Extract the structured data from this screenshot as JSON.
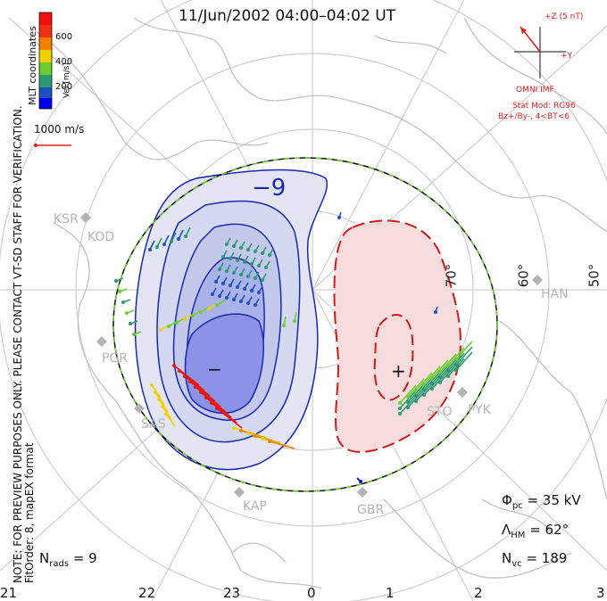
{
  "title": "11/Jun/2002 04:00–04:02 UT",
  "side_note_line1": "NOTE: FOR PREVIEW PURPOSES ONLY. PLEASE CONTACT VT-SD STAFF FOR VERIFICATION.",
  "side_note_line2": "FitOrder: 8, mapEX format",
  "coord_label": "MLT coordinates",
  "colorbar": {
    "label": "Vel [m/s]",
    "ticks": [
      "600",
      "400",
      "200"
    ],
    "colors": [
      "#0000ee",
      "#2050c0",
      "#2a9a70",
      "#6ccc30",
      "#f0d000",
      "#f08000",
      "#e02010",
      "#f01010"
    ]
  },
  "ref_vector": "1000 m/s",
  "imf": {
    "z_label": "+Z (5 nT)",
    "y_label": "+Y",
    "title": "OMNI IMF",
    "model_line1": "Stat Mod: RG96",
    "model_line2": "Bz+/By-, 4<BT<6"
  },
  "cell_minimum_label": "−9",
  "neg_marker": "−",
  "pos_marker": "+",
  "latitude_labels": [
    "70°",
    "60°",
    "50°"
  ],
  "stations": [
    "KSR",
    "KOD",
    "PGR",
    "SAS",
    "KAP",
    "GBR",
    "STO",
    "PYK",
    "HAN"
  ],
  "stats": {
    "phi_label": "Φ",
    "phi_sub": "pc",
    "phi_value": "= 35 kV",
    "lambda_label": "Λ",
    "lambda_sub": "HM",
    "lambda_value": "= 62°",
    "nvc_label": "N",
    "nvc_sub": "vc",
    "nvc_value": "= 189",
    "nrads_label": "N",
    "nrads_sub": "rads",
    "nrads_value": "= 9"
  },
  "hour_labels": [
    "21",
    "22",
    "23",
    "0",
    "1",
    "2",
    "3"
  ],
  "colors": {
    "neg_cell_outer": "#e3e5f2",
    "neg_cell_mid": "#c4c9ec",
    "neg_cell_inner": "#8a93e6",
    "neg_contour": "#1a28b0",
    "pos_cell": "#f6dcdc",
    "pos_contour": "#cc1b1b",
    "boundary": "#6ccc30",
    "grid": "#c8c8c8",
    "coast": "#c2c2c2"
  }
}
